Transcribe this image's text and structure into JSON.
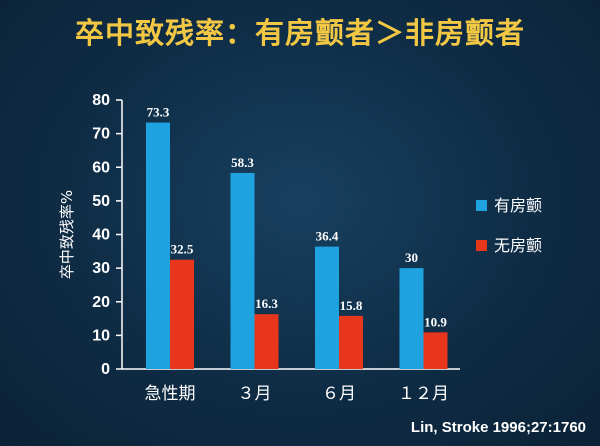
{
  "chart_data": {
    "type": "bar",
    "title": "卒中致残率：有房颤者＞非房颤者",
    "ylabel": "卒中致残率%",
    "xlabel": "",
    "ylim": [
      0,
      80
    ],
    "yticks": [
      0,
      10,
      20,
      30,
      40,
      50,
      60,
      70,
      80
    ],
    "grid": false,
    "legend_position": "right",
    "categories": [
      "急性期",
      "３月",
      "６月",
      "１２月"
    ],
    "series": [
      {
        "name": "有房颤",
        "color": "#1fa3e0",
        "values": [
          73.3,
          58.3,
          36.4,
          30
        ]
      },
      {
        "name": "无房颤",
        "color": "#e8361c",
        "values": [
          32.5,
          16.3,
          15.8,
          10.9
        ]
      }
    ],
    "data_labels": [
      [
        "73.3",
        "58.3",
        "36.4",
        "30"
      ],
      [
        "32.5",
        "16.3",
        "15.8",
        "10.9"
      ]
    ]
  },
  "citation": "Lin, Stroke 1996;27:1760"
}
